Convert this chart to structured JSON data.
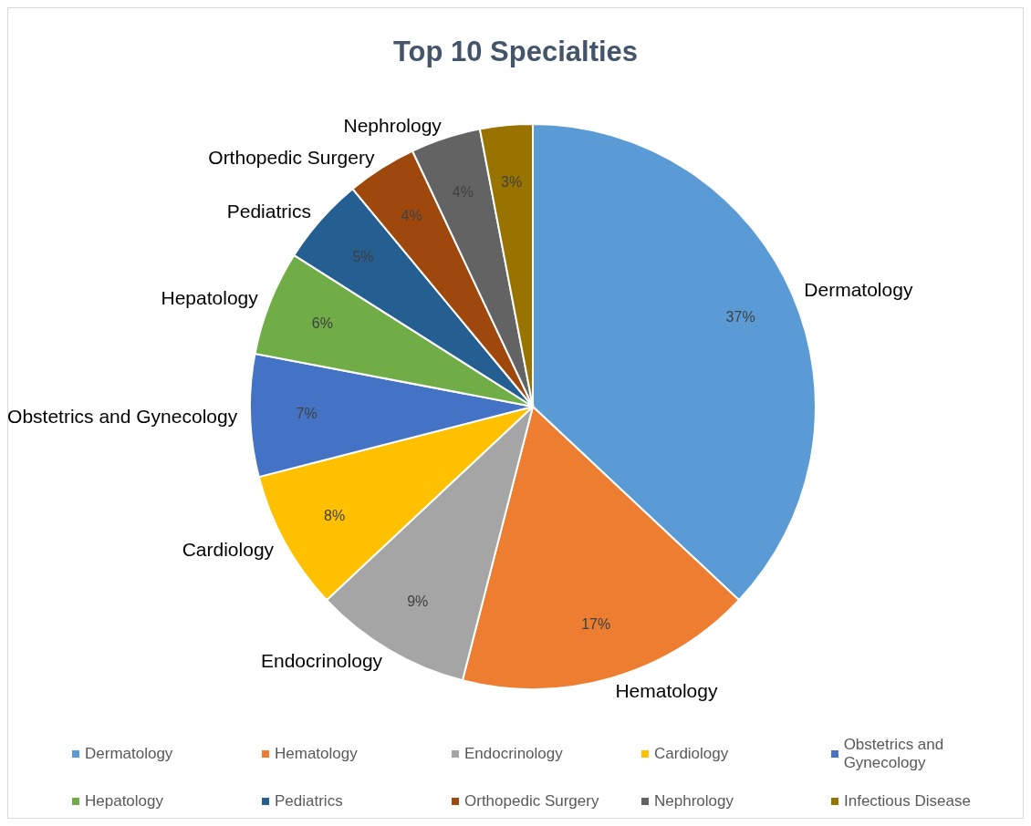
{
  "chart_data": {
    "type": "pie",
    "title": "Top 10 Specialties",
    "categories": [
      "Dermatology",
      "Hematology",
      "Endocrinology",
      "Cardiology",
      "Obstetrics and Gynecology",
      "Hepatology",
      "Pediatrics",
      "Orthopedic Surgery",
      "Nephrology",
      "Infectious Disease"
    ],
    "values": [
      37,
      17,
      9,
      8,
      7,
      6,
      5,
      4,
      4,
      3
    ],
    "value_labels": [
      "37%",
      "17%",
      "9%",
      "8%",
      "7%",
      "6%",
      "5%",
      "4%",
      "4%",
      "3%"
    ],
    "colors": [
      "#5b9bd5",
      "#ed7d31",
      "#a5a5a5",
      "#ffc000",
      "#4472c4",
      "#70ad47",
      "#255e91",
      "#9e480e",
      "#636363",
      "#997300"
    ],
    "legend": "bottom"
  }
}
